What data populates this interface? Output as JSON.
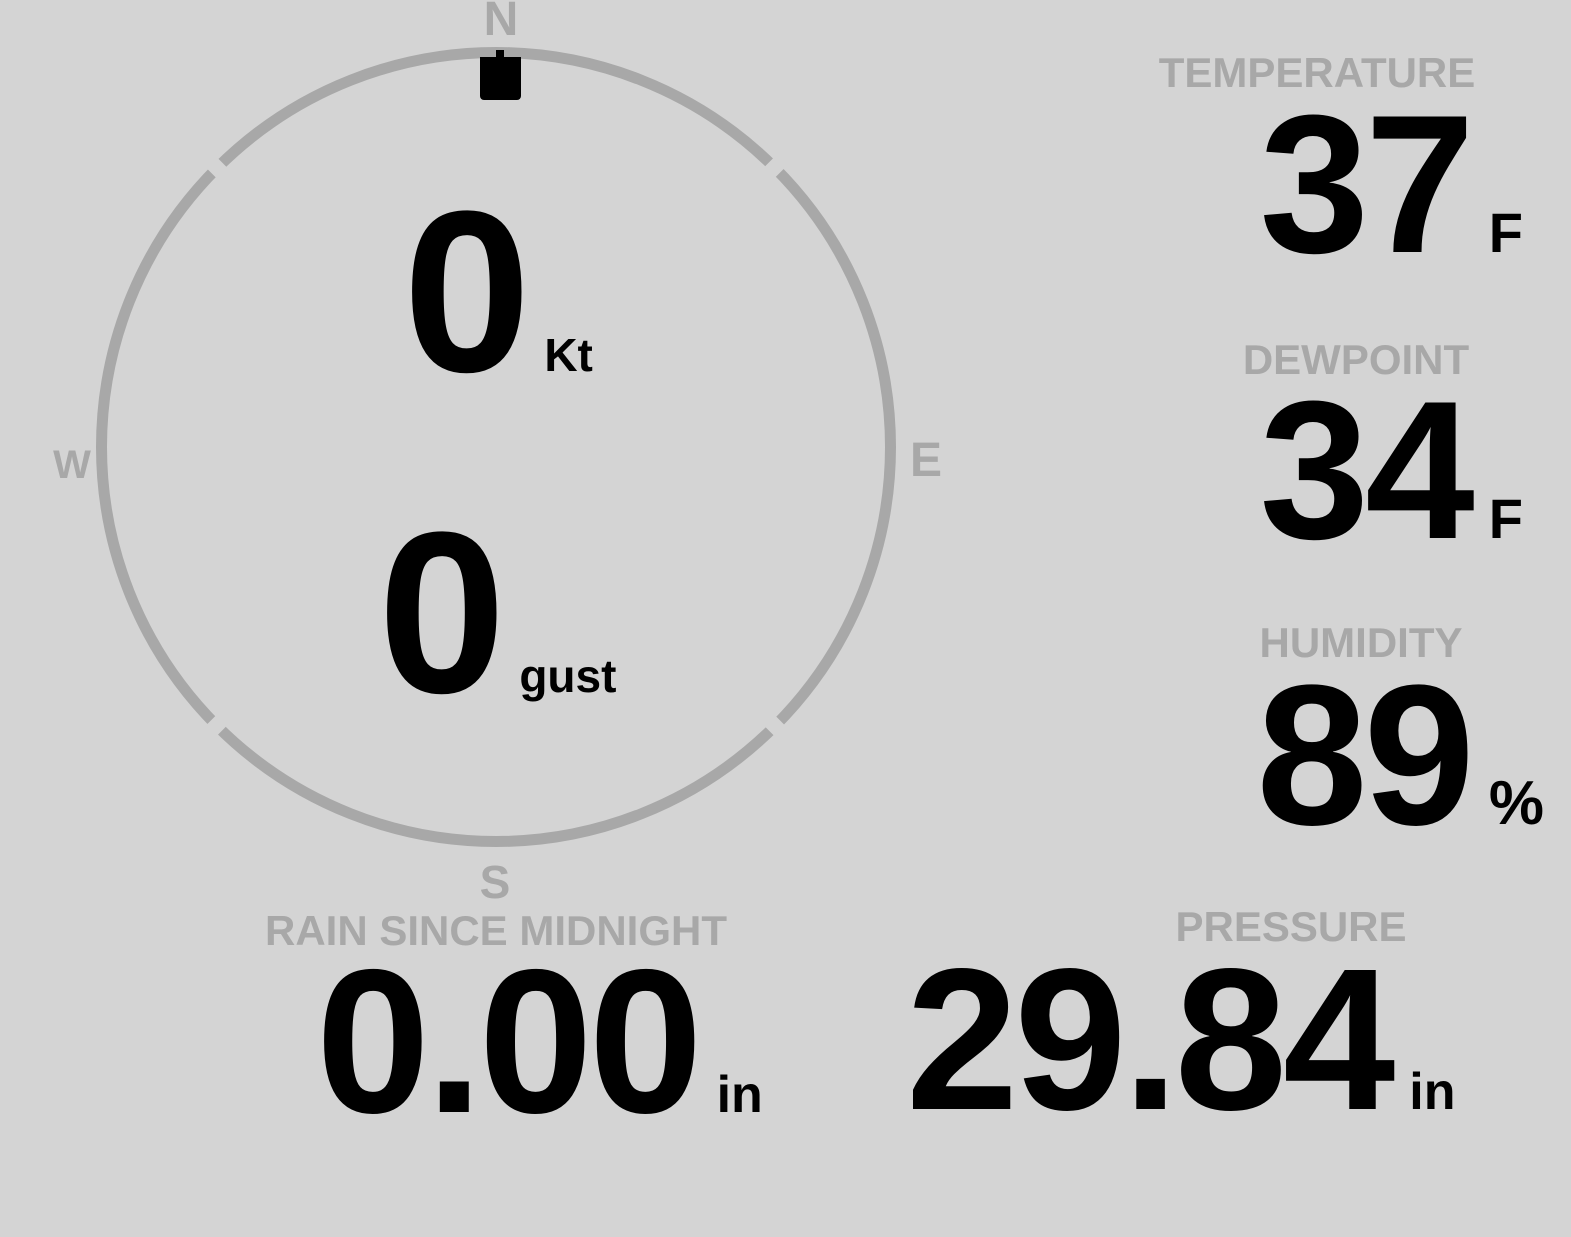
{
  "theme": {
    "background": "#d4d4d4",
    "muted": "#a8a8a8",
    "ink": "#000000"
  },
  "compass": {
    "cardinals": {
      "north": "N",
      "east": "E",
      "south": "S",
      "west": "W"
    },
    "direction_marker": {
      "points_to": "N",
      "degrees": 0
    },
    "speed": {
      "value": "0",
      "unit": "Kt"
    },
    "gust": {
      "value": "0",
      "unit": "gust"
    }
  },
  "metrics": {
    "temperature": {
      "label": "TEMPERATURE",
      "value": "37",
      "unit": "F"
    },
    "dewpoint": {
      "label": "DEWPOINT",
      "value": "34",
      "unit": "F"
    },
    "humidity": {
      "label": "HUMIDITY",
      "value": "89",
      "unit": "%"
    },
    "rain_since_midnight": {
      "label": "RAIN SINCE MIDNIGHT",
      "value": "0.00",
      "unit": "in"
    },
    "pressure": {
      "label": "PRESSURE",
      "value": "29.84",
      "unit": "in"
    }
  }
}
